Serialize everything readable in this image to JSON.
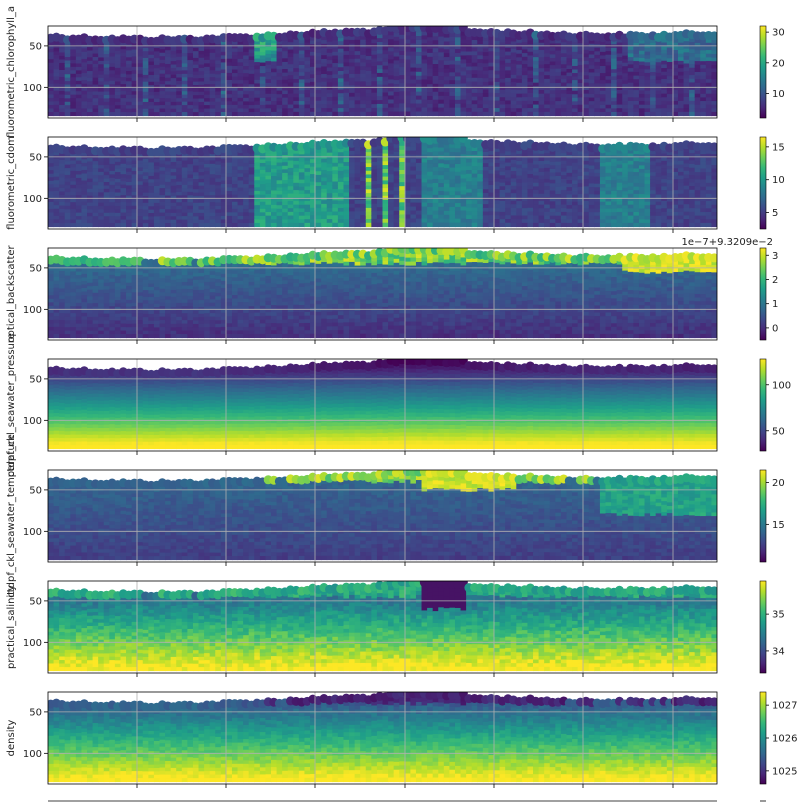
{
  "chart_data": {
    "type": "heatmap",
    "figure": "glider section plots (depth vs time), color = variable value",
    "x_tick_labels": [],
    "colormap": "viridis",
    "colormap_stops": [
      "#440154",
      "#482878",
      "#3e4989",
      "#31688e",
      "#26828e",
      "#1f9e89",
      "#35b779",
      "#6ece58",
      "#b5de2b",
      "#fde725"
    ],
    "depth_ticks": [
      50,
      100
    ],
    "depth_range": [
      26,
      137
    ],
    "panels": [
      {
        "ylabel": "fluorometric_chlorophyll_a",
        "colorbar_ticks": [
          "10",
          "20",
          "30"
        ],
        "colorbar_range": [
          2,
          32
        ],
        "colorbar_tick_values": [
          10,
          20,
          30
        ],
        "offset_text": "",
        "pattern": "chlorophyll"
      },
      {
        "ylabel": "fluorometric_cdom",
        "colorbar_ticks": [
          "5",
          "10",
          "15"
        ],
        "colorbar_range": [
          2.5,
          16.5
        ],
        "colorbar_tick_values": [
          5,
          10,
          15
        ],
        "offset_text": "",
        "pattern": "cdom"
      },
      {
        "ylabel": "optical_backscatter",
        "colorbar_ticks": [
          "0",
          "1",
          "2",
          "3"
        ],
        "colorbar_range": [
          -0.5,
          3.3
        ],
        "colorbar_tick_values": [
          0,
          1,
          2,
          3
        ],
        "offset_text": "1e−7+9.3209e−2",
        "pattern": "backscatter"
      },
      {
        "ylabel": "ctdpf_ckl_seawater_pressure",
        "colorbar_ticks": [
          "50",
          "100"
        ],
        "colorbar_range": [
          28,
          128
        ],
        "colorbar_tick_values": [
          50,
          100
        ],
        "offset_text": "",
        "pattern": "pressure"
      },
      {
        "ylabel": "ctdpf_ckl_seawater_temperature",
        "colorbar_ticks": [
          "15",
          "20"
        ],
        "colorbar_range": [
          10.5,
          21.5
        ],
        "colorbar_tick_values": [
          15,
          20
        ],
        "offset_text": "",
        "pattern": "temperature"
      },
      {
        "ylabel": "practical_salinity",
        "colorbar_ticks": [
          "34",
          "35"
        ],
        "colorbar_range": [
          33.4,
          35.9
        ],
        "colorbar_tick_values": [
          34,
          35
        ],
        "offset_text": "",
        "pattern": "salinity"
      },
      {
        "ylabel": "density",
        "colorbar_ticks": [
          "1025",
          "1026",
          "1027"
        ],
        "colorbar_range": [
          1024.6,
          1027.4
        ],
        "colorbar_tick_values": [
          1025,
          1026,
          1027
        ],
        "offset_text": "",
        "pattern": "density"
      }
    ]
  }
}
